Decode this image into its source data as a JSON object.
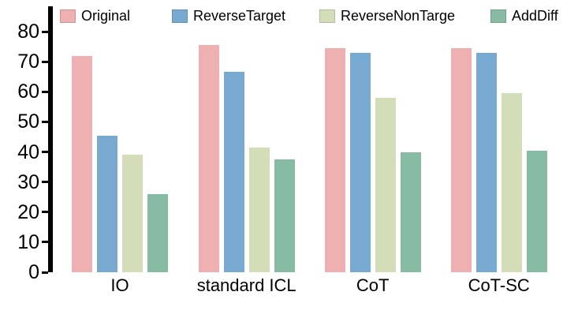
{
  "chart_data": {
    "type": "bar",
    "title": "",
    "xlabel": "",
    "ylabel": "",
    "categories": [
      "IO",
      "standard ICL",
      "CoT",
      "CoT-SC"
    ],
    "series": [
      {
        "name": "Original",
        "color": "#efb0b2",
        "values": [
          72,
          75.5,
          74.5,
          74.5
        ]
      },
      {
        "name": "ReverseTarget",
        "color": "#77a9d1",
        "values": [
          45.5,
          66.5,
          73,
          73
        ]
      },
      {
        "name": "ReverseNonTarge",
        "color": "#d3ddb8",
        "values": [
          39,
          41.5,
          58,
          59.5
        ]
      },
      {
        "name": "AddDiff",
        "color": "#88bba3",
        "values": [
          26,
          37.5,
          40,
          40.5
        ]
      }
    ],
    "ylim": [
      0,
      80
    ],
    "yticks": [
      0,
      10,
      20,
      30,
      40,
      50,
      60,
      70,
      80
    ],
    "grid": false,
    "legend_position": "top"
  }
}
